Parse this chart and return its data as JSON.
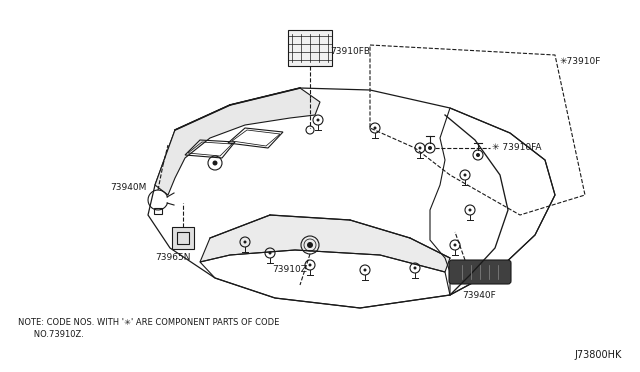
{
  "bg_color": "#ffffff",
  "diagram_color": "#1a1a1a",
  "note_line1": "NOTE: CODE NOS. WITH '✳' ARE COMPONENT PARTS OF CODE",
  "note_line2": "      NO.73910Z.",
  "diagram_id": "J73800HK",
  "label_fs": 6.5,
  "note_fs": 6.0,
  "id_fs": 7.0
}
